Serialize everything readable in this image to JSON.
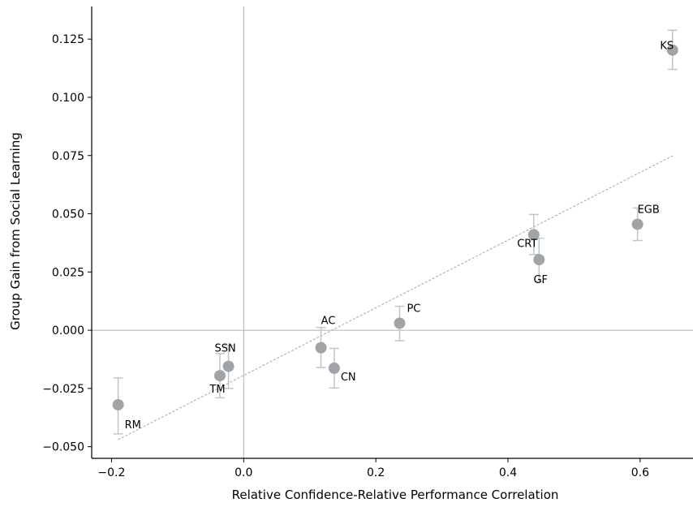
{
  "chart_data": {
    "type": "scatter",
    "xlabel": "Relative Confidence-Relative Performance Correlation",
    "ylabel": "Group Gain from Social Learning",
    "xlim": [
      -0.23,
      0.68
    ],
    "ylim": [
      -0.055,
      0.139
    ],
    "xticks": [
      -0.2,
      0.0,
      0.2,
      0.4,
      0.6
    ],
    "xtick_labels": [
      "−0.2",
      "0.0",
      "0.2",
      "0.4",
      "0.6"
    ],
    "yticks": [
      -0.05,
      -0.025,
      0.0,
      0.025,
      0.05,
      0.075,
      0.1,
      0.125
    ],
    "ytick_labels": [
      "−0.050",
      "−0.025",
      "0.000",
      "0.025",
      "0.050",
      "0.075",
      "0.100",
      "0.125"
    ],
    "grid": false,
    "reference_lines": {
      "x": 0.0,
      "y": 0.0
    },
    "trend_line": {
      "x": [
        -0.19,
        0.65
      ],
      "y": [
        -0.047,
        0.075
      ]
    },
    "points": [
      {
        "label": "RM",
        "x": -0.19,
        "y": -0.032,
        "yerr_low": -0.0445,
        "yerr_high": -0.0205
      },
      {
        "label": "TM",
        "x": -0.036,
        "y": -0.0195,
        "yerr_low": -0.029,
        "yerr_high": -0.01
      },
      {
        "label": "SSN",
        "x": -0.023,
        "y": -0.0155,
        "yerr_low": -0.025,
        "yerr_high": -0.0065
      },
      {
        "label": "AC",
        "x": 0.117,
        "y": -0.0075,
        "yerr_low": -0.016,
        "yerr_high": 0.0012
      },
      {
        "label": "CN",
        "x": 0.137,
        "y": -0.0163,
        "yerr_low": -0.0248,
        "yerr_high": -0.0078
      },
      {
        "label": "PC",
        "x": 0.236,
        "y": 0.003,
        "yerr_low": -0.0045,
        "yerr_high": 0.0103
      },
      {
        "label": "CRT",
        "x": 0.439,
        "y": 0.041,
        "yerr_low": 0.0325,
        "yerr_high": 0.0497
      },
      {
        "label": "GF",
        "x": 0.447,
        "y": 0.0303,
        "yerr_low": 0.021,
        "yerr_high": 0.0395
      },
      {
        "label": "EGB",
        "x": 0.596,
        "y": 0.0455,
        "yerr_low": 0.0385,
        "yerr_high": 0.0525
      },
      {
        "label": "KS",
        "x": 0.649,
        "y": 0.1203,
        "yerr_low": 0.112,
        "yerr_high": 0.1288
      }
    ],
    "colors": {
      "point": "#a0a4a8",
      "errorbar": "#b9c9c9",
      "trend": "#a6a6a6",
      "reference": "#b0b0b0",
      "axis": "#000000"
    }
  }
}
